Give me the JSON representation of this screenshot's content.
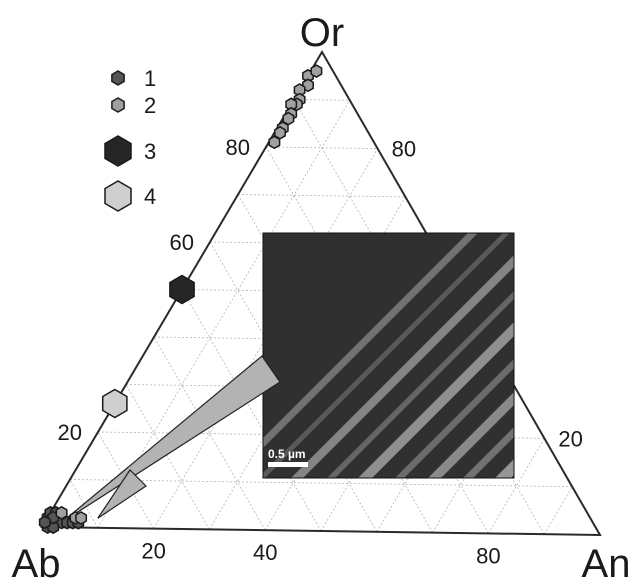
{
  "chart_data": {
    "type": "scatter",
    "title": "",
    "vertices": {
      "top": "Or",
      "left": "Ab",
      "right": "An"
    },
    "grid": true,
    "grid_step": 10,
    "tick_labels": {
      "left_edge": [
        "20",
        "60",
        "80"
      ],
      "right_edge": [
        "80",
        "20"
      ],
      "bottom_edge": [
        "20",
        "40",
        "80"
      ]
    },
    "legend": {
      "placement": "top-left",
      "entries": [
        {
          "label": "1",
          "fill": "#555555",
          "size": "small"
        },
        {
          "label": "2",
          "fill": "#a0a0a0",
          "size": "small"
        },
        {
          "label": "3",
          "fill": "#262626",
          "size": "large"
        },
        {
          "label": "4",
          "fill": "#cfcfcf",
          "size": "large"
        }
      ]
    },
    "series": [
      {
        "label": "1",
        "points": [
          {
            "Ab": 99,
            "An": 1,
            "Or": 0
          },
          {
            "Ab": 98,
            "An": 1,
            "Or": 1
          },
          {
            "Ab": 97,
            "An": 2,
            "Or": 1
          },
          {
            "Ab": 96,
            "An": 3,
            "Or": 1
          },
          {
            "Ab": 95,
            "An": 4,
            "Or": 1
          },
          {
            "Ab": 98,
            "An": 0,
            "Or": 2
          },
          {
            "Ab": 97,
            "An": 0,
            "Or": 3
          },
          {
            "Ab": 96,
            "An": 1,
            "Or": 3
          },
          {
            "Ab": 98,
            "An": 2,
            "Or": 0
          },
          {
            "Ab": 95,
            "An": 2,
            "Or": 3
          },
          {
            "Ab": 94,
            "An": 5,
            "Or": 1
          },
          {
            "Ab": 93,
            "An": 6,
            "Or": 1
          },
          {
            "Ab": 97,
            "An": 1,
            "Or": 2
          },
          {
            "Ab": 99,
            "An": 0,
            "Or": 1
          }
        ]
      },
      {
        "label": "2",
        "points": [
          {
            "Ab": 5,
            "An": 0,
            "Or": 95
          },
          {
            "Ab": 3,
            "An": 1,
            "Or": 96
          },
          {
            "Ab": 6,
            "An": 1,
            "Or": 93
          },
          {
            "Ab": 8,
            "An": 0,
            "Or": 92
          },
          {
            "Ab": 9,
            "An": 1,
            "Or": 90
          },
          {
            "Ab": 10,
            "An": 1,
            "Or": 89
          },
          {
            "Ab": 11,
            "An": 0,
            "Or": 89
          },
          {
            "Ab": 12,
            "An": 1,
            "Or": 87
          },
          {
            "Ab": 13,
            "An": 1,
            "Or": 86
          },
          {
            "Ab": 15,
            "An": 1,
            "Or": 84
          },
          {
            "Ab": 16,
            "An": 1,
            "Or": 83
          },
          {
            "Ab": 18,
            "An": 1,
            "Or": 81
          },
          {
            "Ab": 95,
            "An": 2,
            "Or": 3
          },
          {
            "Ab": 93,
            "An": 5,
            "Or": 2
          },
          {
            "Ab": 92,
            "An": 6,
            "Or": 2
          }
        ]
      },
      {
        "label": "3",
        "points": [
          {
            "Ab": 50,
            "An": 0,
            "Or": 50
          }
        ]
      },
      {
        "label": "4",
        "points": [
          {
            "Ab": 74,
            "An": 0,
            "Or": 26
          }
        ]
      }
    ],
    "annotations": [
      {
        "text": "0.5 µm",
        "kind": "scale-bar"
      }
    ],
    "pointers": [
      {
        "from": {
          "Ab": 96,
          "An": 3,
          "Or": 1
        },
        "to": "inset"
      },
      {
        "from": {
          "Ab": 89,
          "An": 9,
          "Or": 2
        },
        "to": "inset"
      }
    ]
  },
  "inset": {
    "kind": "micrograph",
    "scale_bar_label": "0.5 µm",
    "colors": {
      "background": "#303030",
      "lamella_dark": "#1a1a1a",
      "lamella_light": "#a8a8a8"
    }
  },
  "colors": {
    "axis": "#2a2a2a",
    "grid": "#b5b5b5",
    "text": "#1a1a1a",
    "pointer_fill": "#b3b3b3"
  }
}
